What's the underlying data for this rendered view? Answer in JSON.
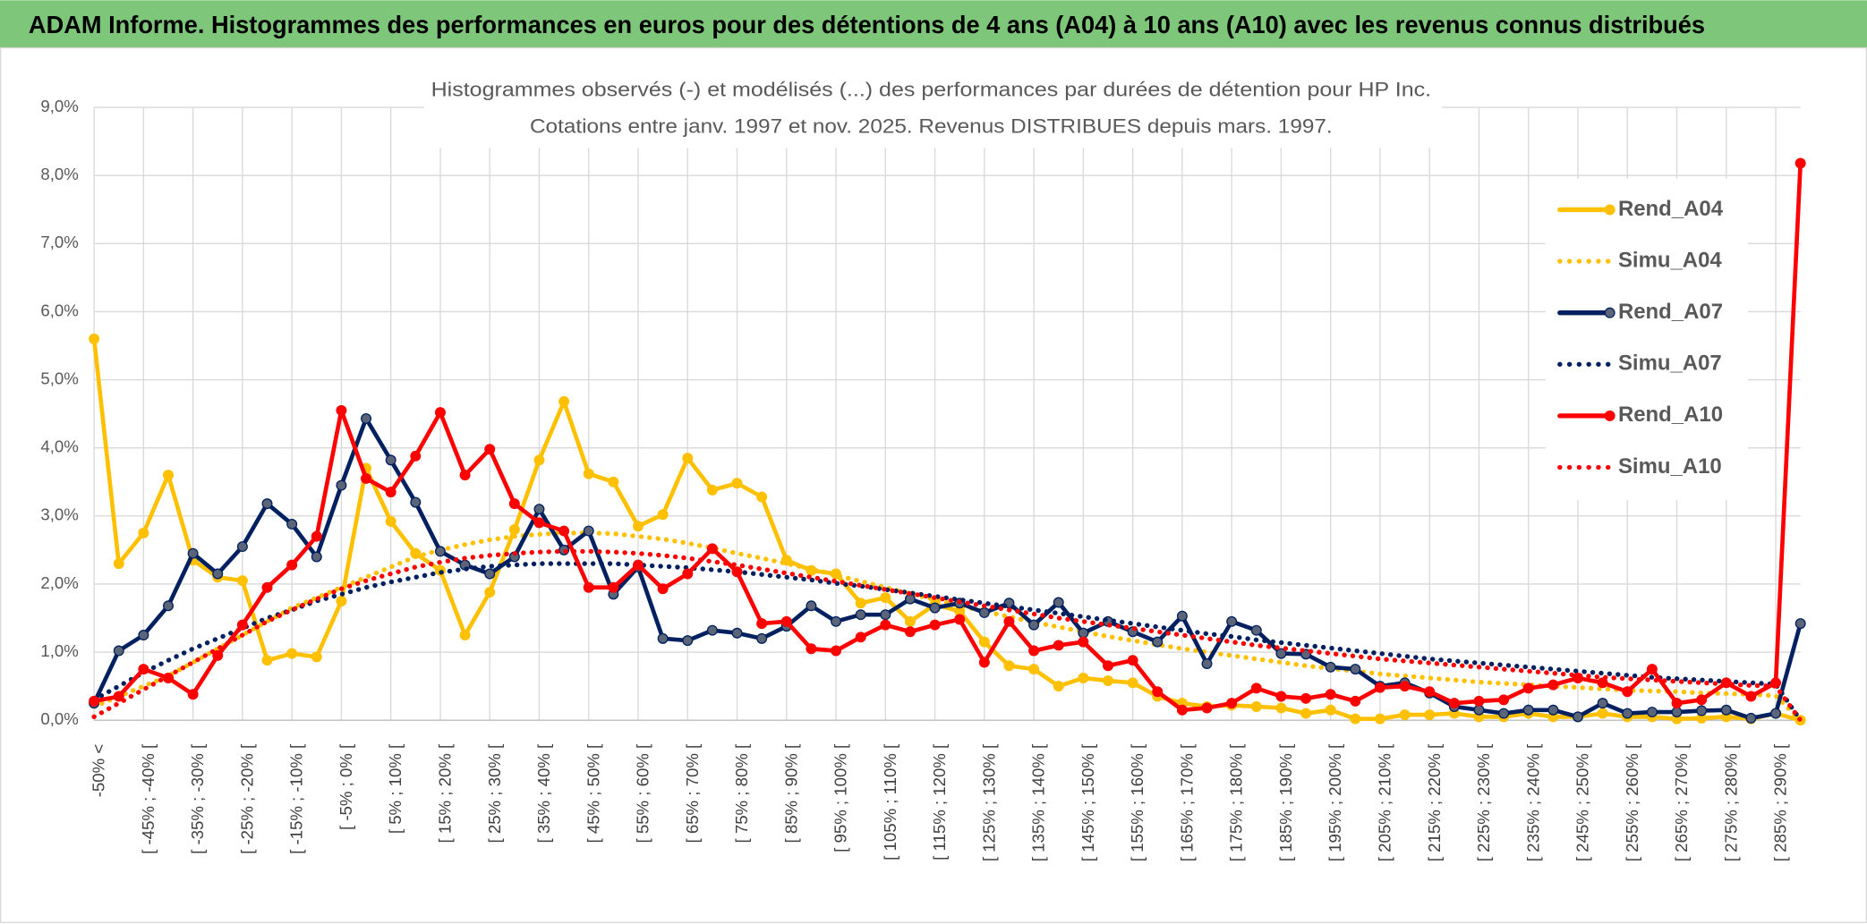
{
  "header": {
    "title": "ADAM Informe. Histogrammes des performances en euros pour des détentions de 4 ans (A04) à 10 ans (A10) avec les revenus connus distribués"
  },
  "chart_data": {
    "type": "line",
    "title": "Histogrammes observés (-) et modélisés (...) des performances par durées de détention pour HP Inc.",
    "subtitle": "Cotations entre janv. 1997 et nov. 2025. Revenus DISTRIBUES depuis mars. 1997.",
    "categories": [
      "-50% <",
      null,
      "[ -45% ; -40% [",
      null,
      "[ -35% ; -30% [",
      null,
      "[ -25% ; -20% [",
      null,
      "[ -15% ; -10% [",
      null,
      "[ -5% ; 0% [",
      null,
      "[ 5% ; 10% [",
      null,
      "[ 15% ; 20% [",
      null,
      "[ 25% ; 30% [",
      null,
      "[ 35% ; 40% [",
      null,
      "[ 45% ; 50% [",
      null,
      "[ 55% ; 60% [",
      null,
      "[ 65% ; 70% [",
      null,
      "[ 75% ; 80% [",
      null,
      "[ 85% ; 90% [",
      null,
      "[ 95% ; 100% [",
      null,
      "[ 105% ; 110% [",
      null,
      "[ 115% ; 120% [",
      null,
      "[ 125% ; 130% [",
      null,
      "[ 135% ; 140% [",
      null,
      "[ 145% ; 150% [",
      null,
      "[ 155% ; 160% [",
      null,
      "[ 165% ; 170% [",
      null,
      "[ 175% ; 180% [",
      null,
      "[ 185% ; 190% [",
      null,
      "[ 195% ; 200% [",
      null,
      "[ 205% ; 210% [",
      null,
      "[ 215% ; 220% [",
      null,
      "[ 225% ; 230% [",
      null,
      "[ 235% ; 240% [",
      null,
      "[ 245% ; 250% [",
      null,
      "[ 255% ; 260% [",
      null,
      "[ 265% ; 270% [",
      null,
      "[ 275% ; 280% [",
      null,
      "[ 285% ; 290% [",
      null
    ],
    "ylim": [
      0,
      9
    ],
    "yticks": [
      {
        "value": 0,
        "label": "0,0%"
      },
      {
        "value": 1,
        "label": "1,0%"
      },
      {
        "value": 2,
        "label": "2,0%"
      },
      {
        "value": 3,
        "label": "3,0%"
      },
      {
        "value": 4,
        "label": "4,0%"
      },
      {
        "value": 5,
        "label": "5,0%"
      },
      {
        "value": 6,
        "label": "6,0%"
      },
      {
        "value": 7,
        "label": "7,0%"
      },
      {
        "value": 8,
        "label": "8,0%"
      },
      {
        "value": 9,
        "label": "9,0%"
      }
    ],
    "grid": true,
    "legend": "right",
    "series": [
      {
        "name": "Rend_A04",
        "color": "#FFC000",
        "style": "solid",
        "marker": true,
        "values": [
          5.6,
          2.3,
          2.75,
          3.6,
          2.35,
          2.1,
          2.05,
          0.88,
          0.98,
          0.93,
          1.75,
          3.7,
          2.92,
          2.45,
          2.2,
          1.25,
          1.88,
          2.8,
          3.82,
          4.68,
          3.62,
          3.5,
          2.85,
          3.02,
          3.85,
          3.38,
          3.48,
          3.28,
          2.35,
          2.2,
          2.15,
          1.72,
          1.8,
          1.45,
          1.7,
          1.6,
          1.15,
          0.8,
          0.75,
          0.5,
          0.62,
          0.58,
          0.55,
          0.35,
          0.25,
          0.2,
          0.22,
          0.2,
          0.18,
          0.1,
          0.15,
          0.02,
          0.02,
          0.08,
          0.08,
          0.1,
          0.05,
          0.05,
          0.1,
          0.05,
          0.05,
          0.1,
          0.05,
          0.05,
          0.02,
          0.03,
          0.05,
          0.02,
          0.1,
          0
        ]
      },
      {
        "name": "Simu_A04",
        "color": "#FFC000",
        "style": "dotted",
        "marker": false,
        "values": [
          0.2,
          0.35,
          0.5,
          0.65,
          0.85,
          1.05,
          1.25,
          1.45,
          1.65,
          1.8,
          1.95,
          2.1,
          2.25,
          2.4,
          2.5,
          2.58,
          2.65,
          2.7,
          2.73,
          2.75,
          2.75,
          2.74,
          2.7,
          2.66,
          2.6,
          2.53,
          2.45,
          2.38,
          2.3,
          2.22,
          2.13,
          2.04,
          1.95,
          1.86,
          1.77,
          1.68,
          1.6,
          1.52,
          1.44,
          1.37,
          1.3,
          1.23,
          1.17,
          1.11,
          1.05,
          1.0,
          0.95,
          0.9,
          0.85,
          0.8,
          0.76,
          0.72,
          0.68,
          0.65,
          0.62,
          0.59,
          0.56,
          0.54,
          0.52,
          0.5,
          0.48,
          0.46,
          0.44,
          0.43,
          0.42,
          0.4,
          0.39,
          0.38,
          0.36,
          0
        ]
      },
      {
        "name": "Rend_A07",
        "color": "#002060",
        "style": "solid",
        "marker": true,
        "values": [
          0.25,
          1.02,
          1.25,
          1.68,
          2.45,
          2.15,
          2.55,
          3.18,
          2.88,
          2.4,
          3.45,
          4.43,
          3.82,
          3.2,
          2.48,
          2.28,
          2.15,
          2.4,
          3.1,
          2.5,
          2.78,
          1.85,
          2.25,
          1.2,
          1.17,
          1.32,
          1.28,
          1.2,
          1.38,
          1.68,
          1.45,
          1.55,
          1.55,
          1.78,
          1.65,
          1.72,
          1.58,
          1.72,
          1.4,
          1.73,
          1.28,
          1.45,
          1.3,
          1.15,
          1.53,
          0.83,
          1.45,
          1.32,
          0.98,
          0.97,
          0.78,
          0.75,
          0.5,
          0.55,
          0.4,
          0.2,
          0.15,
          0.1,
          0.15,
          0.15,
          0.05,
          0.25,
          0.1,
          0.12,
          0.12,
          0.14,
          0.15,
          0.03,
          0.1,
          1.42
        ]
      },
      {
        "name": "Simu_A07",
        "color": "#002060",
        "style": "dotted",
        "marker": false,
        "values": [
          0.3,
          0.5,
          0.7,
          0.88,
          1.05,
          1.2,
          1.35,
          1.5,
          1.62,
          1.75,
          1.85,
          1.95,
          2.03,
          2.1,
          2.17,
          2.22,
          2.26,
          2.28,
          2.3,
          2.3,
          2.3,
          2.3,
          2.28,
          2.26,
          2.24,
          2.21,
          2.18,
          2.14,
          2.1,
          2.06,
          2.01,
          1.97,
          1.92,
          1.87,
          1.82,
          1.77,
          1.72,
          1.67,
          1.62,
          1.57,
          1.52,
          1.47,
          1.42,
          1.37,
          1.32,
          1.27,
          1.23,
          1.18,
          1.14,
          1.1,
          1.06,
          1.02,
          0.98,
          0.94,
          0.9,
          0.87,
          0.84,
          0.81,
          0.78,
          0.75,
          0.72,
          0.69,
          0.66,
          0.63,
          0.61,
          0.59,
          0.57,
          0.55,
          0.53,
          0
        ]
      },
      {
        "name": "Rend_A10",
        "color": "#FF0000",
        "style": "solid",
        "marker": true,
        "values": [
          0.28,
          0.35,
          0.75,
          0.62,
          0.38,
          0.95,
          1.4,
          1.95,
          2.28,
          2.7,
          4.55,
          3.55,
          3.35,
          3.88,
          4.52,
          3.6,
          3.98,
          3.18,
          2.9,
          2.78,
          1.95,
          1.95,
          2.28,
          1.93,
          2.15,
          2.52,
          2.18,
          1.42,
          1.45,
          1.05,
          1.02,
          1.22,
          1.4,
          1.3,
          1.4,
          1.48,
          0.85,
          1.45,
          1.02,
          1.1,
          1.15,
          0.8,
          0.88,
          0.42,
          0.15,
          0.18,
          0.25,
          0.47,
          0.35,
          0.32,
          0.38,
          0.28,
          0.48,
          0.5,
          0.42,
          0.25,
          0.28,
          0.3,
          0.47,
          0.52,
          0.62,
          0.55,
          0.42,
          0.75,
          0.25,
          0.3,
          0.55,
          0.35,
          0.55,
          8.18
        ]
      },
      {
        "name": "Simu_A10",
        "color": "#FF0000",
        "style": "dotted",
        "marker": false,
        "values": [
          0.05,
          0.25,
          0.45,
          0.65,
          0.85,
          1.05,
          1.25,
          1.45,
          1.62,
          1.78,
          1.93,
          2.05,
          2.15,
          2.25,
          2.32,
          2.38,
          2.42,
          2.45,
          2.47,
          2.48,
          2.48,
          2.47,
          2.45,
          2.42,
          2.38,
          2.33,
          2.28,
          2.22,
          2.16,
          2.1,
          2.04,
          1.98,
          1.92,
          1.86,
          1.8,
          1.74,
          1.68,
          1.62,
          1.56,
          1.5,
          1.45,
          1.4,
          1.35,
          1.3,
          1.25,
          1.2,
          1.15,
          1.1,
          1.06,
          1.02,
          0.98,
          0.94,
          0.9,
          0.87,
          0.84,
          0.81,
          0.78,
          0.75,
          0.72,
          0.69,
          0.66,
          0.63,
          0.61,
          0.59,
          0.57,
          0.55,
          0.53,
          0.51,
          0.5,
          0
        ]
      }
    ]
  }
}
